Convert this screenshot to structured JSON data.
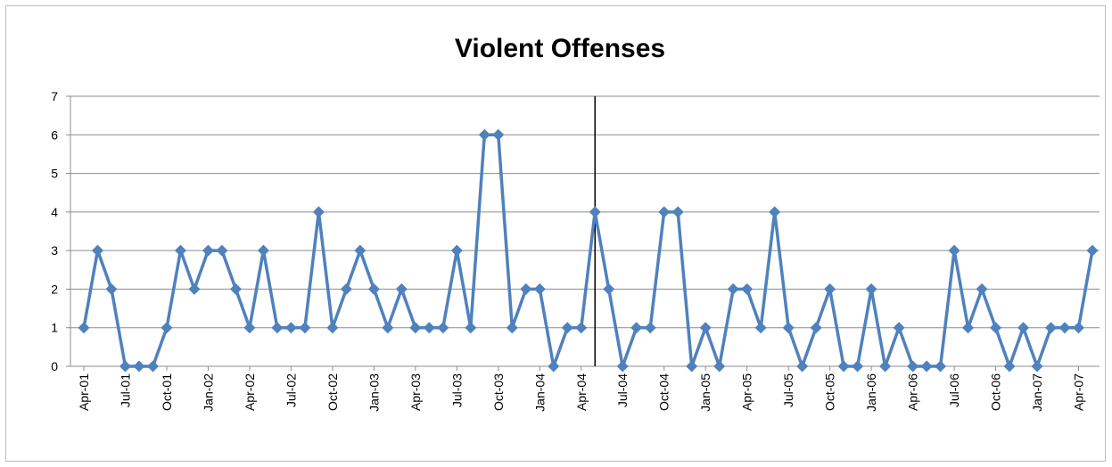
{
  "chart_data": {
    "type": "line",
    "title": "Violent Offenses",
    "xlabel": "",
    "ylabel": "",
    "ylim": [
      0,
      7
    ],
    "yticks": [
      0,
      1,
      2,
      3,
      4,
      5,
      6,
      7
    ],
    "grid": true,
    "legend": "none",
    "x_tick_labels": [
      "Apr-01",
      "Jul-01",
      "Oct-01",
      "Jan-02",
      "Apr-02",
      "Jul-02",
      "Oct-02",
      "Jan-03",
      "Apr-03",
      "Jul-03",
      "Oct-03",
      "Jan-04",
      "Apr-04",
      "Jul-04",
      "Oct-04",
      "Jan-05",
      "Apr-05",
      "Jul-05",
      "Oct-05",
      "Jan-06",
      "Apr-06",
      "Jul-06",
      "Oct-06",
      "Jan-07",
      "Apr-07"
    ],
    "x": [
      "Apr-01",
      "May-01",
      "Jun-01",
      "Jul-01",
      "Aug-01",
      "Sep-01",
      "Oct-01",
      "Nov-01",
      "Dec-01",
      "Jan-02",
      "Feb-02",
      "Mar-02",
      "Apr-02",
      "May-02",
      "Jun-02",
      "Jul-02",
      "Aug-02",
      "Sep-02",
      "Oct-02",
      "Nov-02",
      "Dec-02",
      "Jan-03",
      "Feb-03",
      "Mar-03",
      "Apr-03",
      "May-03",
      "Jun-03",
      "Jul-03",
      "Aug-03",
      "Sep-03",
      "Oct-03",
      "Nov-03",
      "Dec-03",
      "Jan-04",
      "Feb-04",
      "Mar-04",
      "Apr-04",
      "May-04",
      "Jun-04",
      "Jul-04",
      "Aug-04",
      "Sep-04",
      "Oct-04",
      "Nov-04",
      "Dec-04",
      "Jan-05",
      "Feb-05",
      "Mar-05",
      "Apr-05",
      "May-05",
      "Jun-05",
      "Jul-05",
      "Aug-05",
      "Sep-05",
      "Oct-05",
      "Nov-05",
      "Dec-05",
      "Jan-06",
      "Feb-06",
      "Mar-06",
      "Apr-06",
      "May-06",
      "Jun-06",
      "Jul-06",
      "Aug-06",
      "Sep-06",
      "Oct-06",
      "Nov-06",
      "Dec-06",
      "Jan-07",
      "Feb-07",
      "Mar-07",
      "Apr-07",
      "May-07"
    ],
    "series": [
      {
        "values": [
          1,
          3,
          2,
          0,
          0,
          0,
          1,
          3,
          2,
          3,
          3,
          2,
          1,
          3,
          1,
          1,
          1,
          4,
          1,
          2,
          3,
          2,
          1,
          2,
          1,
          1,
          1,
          3,
          1,
          6,
          6,
          1,
          2,
          2,
          0,
          1,
          1,
          4,
          2,
          0,
          1,
          1,
          4,
          4,
          0,
          1,
          0,
          2,
          2,
          1,
          4,
          1,
          0,
          1,
          2,
          0,
          0,
          2,
          0,
          1,
          0,
          0,
          0,
          3,
          1,
          2,
          1,
          0,
          1,
          0,
          1,
          1,
          1,
          3
        ],
        "color": "#4f81bd"
      }
    ],
    "vertical_marker": {
      "at": "May-04",
      "color": "#000000"
    }
  }
}
